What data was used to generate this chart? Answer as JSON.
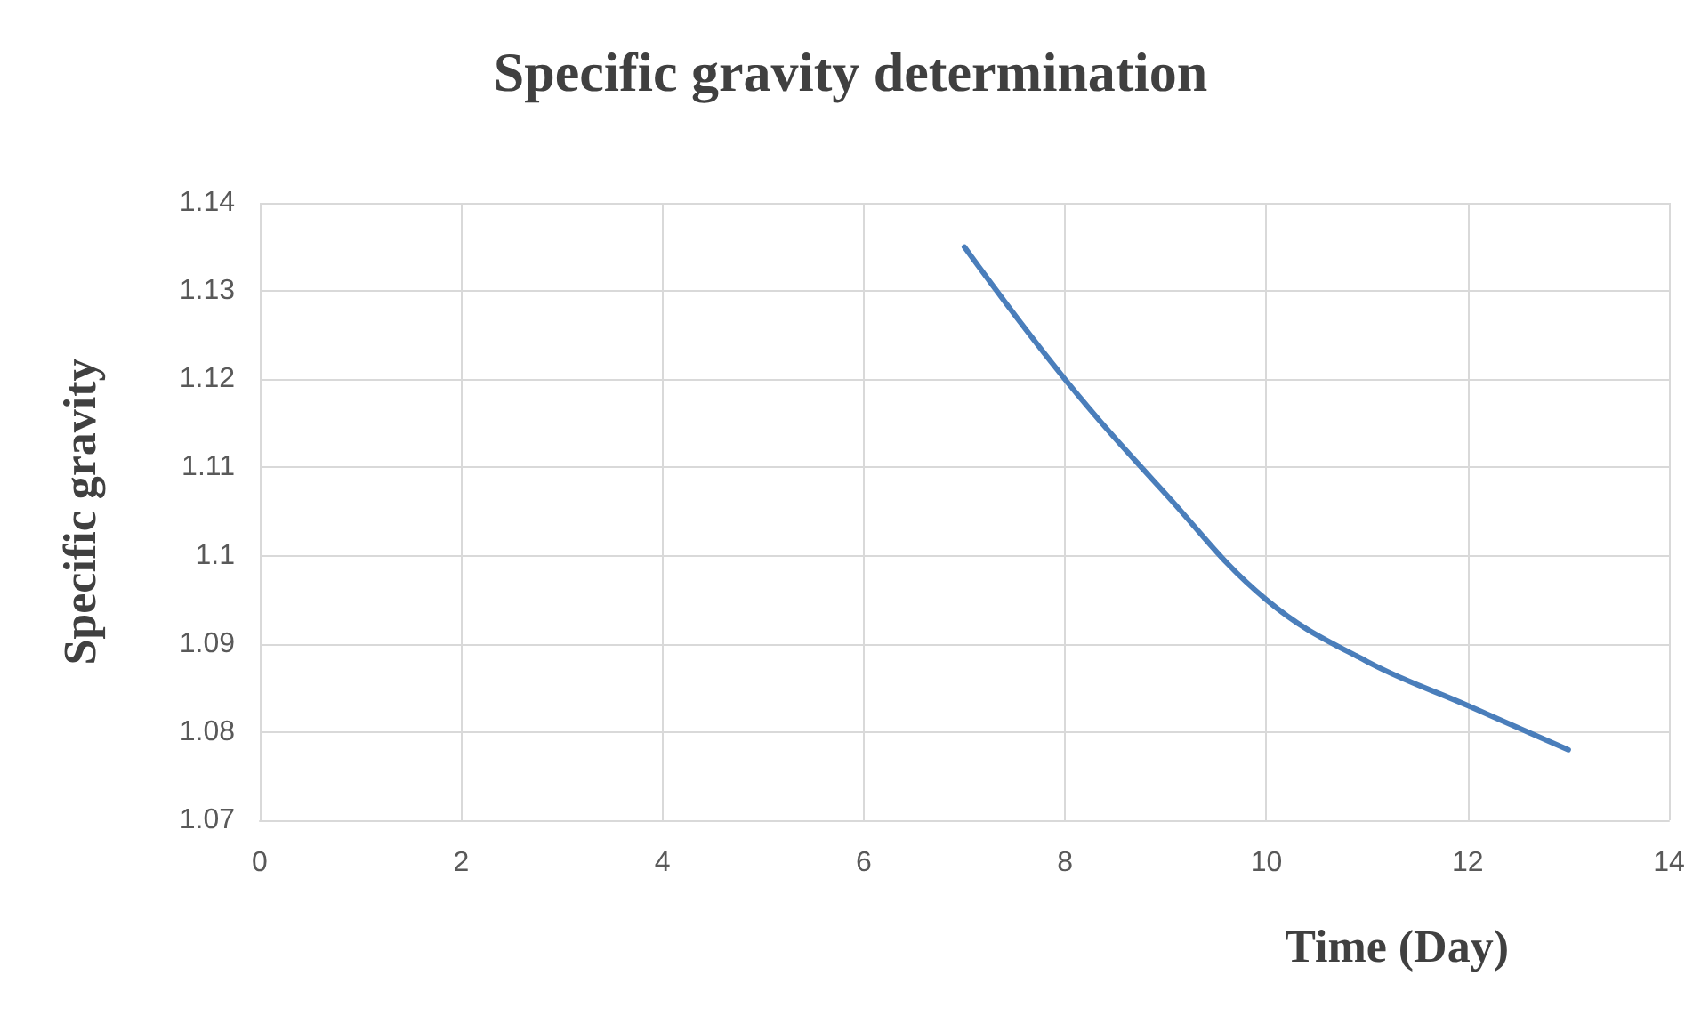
{
  "chart_data": {
    "type": "line",
    "title": "Specific gravity determination",
    "xlabel": "Time (Day)",
    "ylabel": "Specific gravity",
    "x": [
      7,
      8,
      9,
      10,
      11,
      12,
      13
    ],
    "series": [
      {
        "color": "#4a7ebb",
        "values": [
          1.135,
          1.12,
          1.107,
          1.095,
          1.088,
          1.083,
          1.078
        ]
      }
    ],
    "xlim": [
      0,
      14
    ],
    "xticks": [
      0,
      2,
      4,
      6,
      8,
      10,
      12,
      14
    ],
    "ylim": [
      1.07,
      1.14
    ],
    "yticks": [
      1.07,
      1.08,
      1.09,
      1.1,
      1.11,
      1.12,
      1.13,
      1.14
    ],
    "grid": true,
    "marker": "none",
    "line_style": "solid"
  }
}
